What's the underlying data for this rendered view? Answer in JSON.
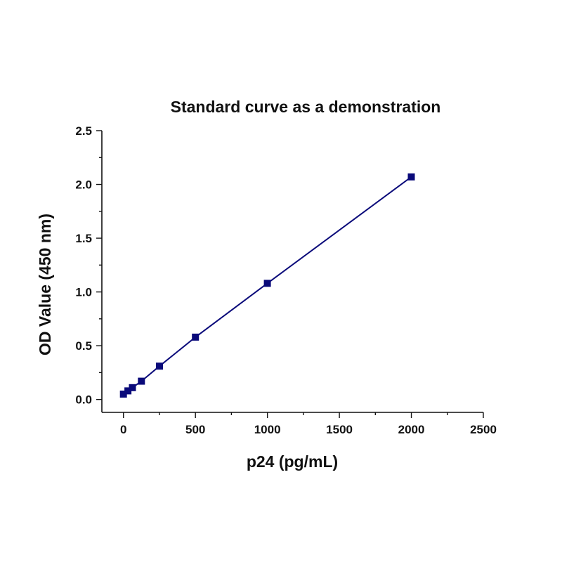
{
  "chart_data": {
    "type": "line",
    "title": "Standard curve as a demonstration",
    "xlabel": "p24 (pg/mL)",
    "ylabel": "OD Value (450 nm)",
    "xlim": [
      -150,
      2500
    ],
    "ylim": [
      -0.12,
      2.5
    ],
    "xticks": [
      0,
      500,
      1000,
      1500,
      2000,
      2500
    ],
    "xtick_labels": [
      "0",
      "500",
      "1000",
      "1500",
      "2000",
      "2500"
    ],
    "yticks": [
      0.0,
      0.5,
      1.0,
      1.5,
      2.0,
      2.5
    ],
    "ytick_labels": [
      "0.0",
      "0.5",
      "1.0",
      "1.5",
      "2.0",
      "2.5"
    ],
    "grid": false,
    "series": [
      {
        "x": [
          0,
          31.25,
          62.5,
          125,
          250,
          500,
          1000,
          2000
        ],
        "y": [
          0.05,
          0.08,
          0.11,
          0.17,
          0.31,
          0.58,
          1.08,
          2.07
        ],
        "color": "#0a0a7a",
        "marker": "square"
      }
    ]
  }
}
